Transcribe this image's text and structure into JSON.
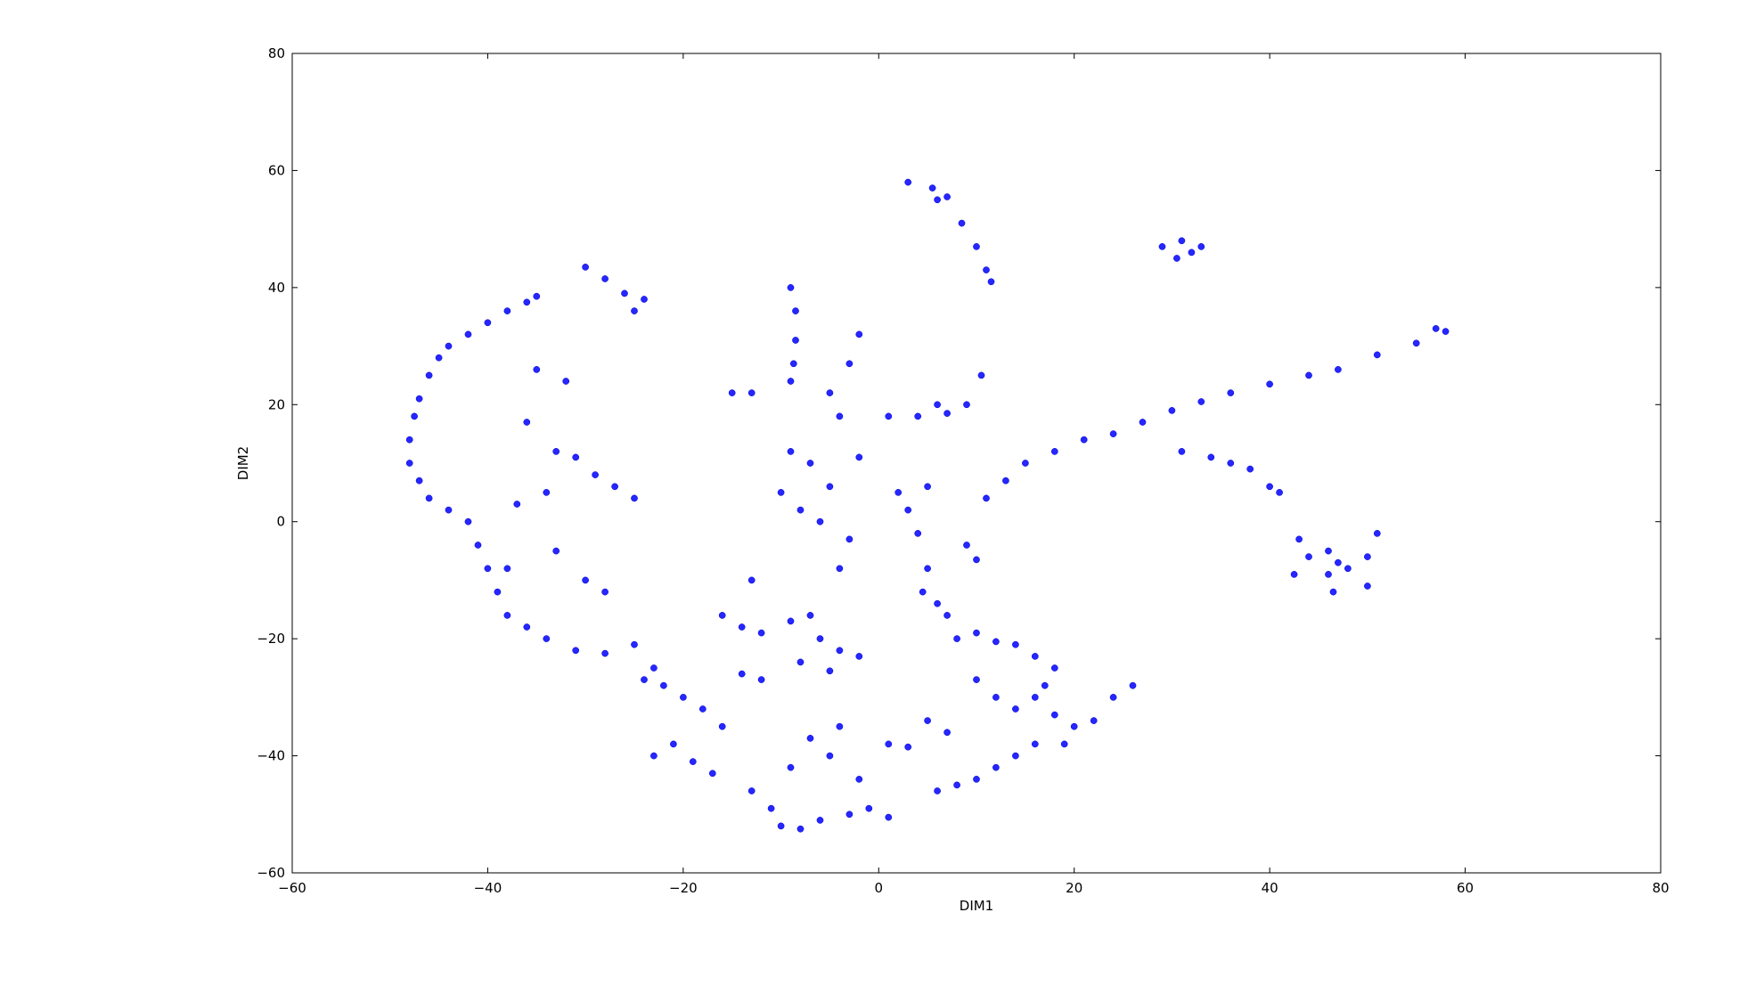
{
  "chart_data": {
    "type": "scatter",
    "title": "",
    "xlabel": "DIM1",
    "ylabel": "DIM2",
    "xlim": [
      -60,
      80
    ],
    "ylim": [
      -60,
      80
    ],
    "xticks": [
      -60,
      -40,
      -20,
      0,
      20,
      40,
      60,
      80
    ],
    "yticks": [
      -60,
      -40,
      -20,
      0,
      20,
      40,
      60,
      80
    ],
    "xtick_labels": [
      "−60",
      "−40",
      "−20",
      "0",
      "20",
      "40",
      "60",
      "80"
    ],
    "ytick_labels": [
      "−60",
      "−40",
      "−20",
      "0",
      "20",
      "40",
      "60",
      "80"
    ],
    "grid": false,
    "legend": false,
    "marker_color": "#0000ff",
    "series": [
      {
        "points": [
          [
            -48.0,
            14.0
          ],
          [
            -47.5,
            18.0
          ],
          [
            -47.0,
            21.0
          ],
          [
            -46.0,
            25.0
          ],
          [
            -45.0,
            28.0
          ],
          [
            -44.0,
            30.0
          ],
          [
            -42.0,
            32.0
          ],
          [
            -40.0,
            34.0
          ],
          [
            -38.0,
            36.0
          ],
          [
            -36.0,
            37.5
          ],
          [
            -35.0,
            38.5
          ],
          [
            -48.0,
            10.0
          ],
          [
            -47.0,
            7.0
          ],
          [
            -46.0,
            4.0
          ],
          [
            -44.0,
            2.0
          ],
          [
            -42.0,
            0.0
          ],
          [
            -41.0,
            -4.0
          ],
          [
            -40.0,
            -8.0
          ],
          [
            -39.0,
            -12.0
          ],
          [
            -38.0,
            -16.0
          ],
          [
            -36.0,
            -18.0
          ],
          [
            -34.0,
            -20.0
          ],
          [
            -31.0,
            -22.0
          ],
          [
            -28.0,
            -22.5
          ],
          [
            -35.0,
            26.0
          ],
          [
            -32.0,
            24.0
          ],
          [
            -36.0,
            17.0
          ],
          [
            -33.0,
            12.0
          ],
          [
            -31.0,
            11.0
          ],
          [
            -29.0,
            8.0
          ],
          [
            -27.0,
            6.0
          ],
          [
            -25.0,
            4.0
          ],
          [
            -34.0,
            5.0
          ],
          [
            -37.0,
            3.0
          ],
          [
            -33.0,
            -5.0
          ],
          [
            -30.0,
            -10.0
          ],
          [
            -28.0,
            -12.0
          ],
          [
            -38.0,
            -8.0
          ],
          [
            -30.0,
            43.5
          ],
          [
            -28.0,
            41.5
          ],
          [
            -26.0,
            39.0
          ],
          [
            -25.0,
            36.0
          ],
          [
            -24.0,
            38.0
          ],
          [
            -15.0,
            22.0
          ],
          [
            -13.0,
            22.0
          ],
          [
            -9.0,
            40.0
          ],
          [
            -8.5,
            36.0
          ],
          [
            -8.5,
            31.0
          ],
          [
            -8.7,
            27.0
          ],
          [
            -9.0,
            24.0
          ],
          [
            -5.0,
            22.0
          ],
          [
            -4.0,
            18.0
          ],
          [
            -2.0,
            32.0
          ],
          [
            -3.0,
            27.0
          ],
          [
            -9.0,
            12.0
          ],
          [
            -7.0,
            10.0
          ],
          [
            -5.0,
            6.0
          ],
          [
            -8.0,
            2.0
          ],
          [
            -6.0,
            0.0
          ],
          [
            -10.0,
            5.0
          ],
          [
            -2.0,
            11.0
          ],
          [
            1.0,
            18.0
          ],
          [
            4.0,
            18.0
          ],
          [
            7.0,
            18.5
          ],
          [
            9.0,
            20.0
          ],
          [
            10.5,
            25.0
          ],
          [
            6.0,
            20.0
          ],
          [
            3.0,
            58.0
          ],
          [
            5.5,
            57.0
          ],
          [
            6.0,
            55.0
          ],
          [
            7.0,
            55.5
          ],
          [
            8.5,
            51.0
          ],
          [
            10.0,
            47.0
          ],
          [
            11.0,
            43.0
          ],
          [
            11.5,
            41.0
          ],
          [
            29.0,
            47.0
          ],
          [
            31.0,
            48.0
          ],
          [
            32.0,
            46.0
          ],
          [
            33.0,
            47.0
          ],
          [
            30.5,
            45.0
          ],
          [
            11.0,
            4.0
          ],
          [
            13.0,
            7.0
          ],
          [
            15.0,
            10.0
          ],
          [
            18.0,
            12.0
          ],
          [
            21.0,
            14.0
          ],
          [
            24.0,
            15.0
          ],
          [
            27.0,
            17.0
          ],
          [
            30.0,
            19.0
          ],
          [
            33.0,
            20.5
          ],
          [
            36.0,
            22.0
          ],
          [
            40.0,
            23.5
          ],
          [
            44.0,
            25.0
          ],
          [
            47.0,
            26.0
          ],
          [
            51.0,
            28.5
          ],
          [
            55.0,
            30.5
          ],
          [
            57.0,
            33.0
          ],
          [
            58.0,
            32.5
          ],
          [
            31.0,
            12.0
          ],
          [
            34.0,
            11.0
          ],
          [
            36.0,
            10.0
          ],
          [
            38.0,
            9.0
          ],
          [
            40.0,
            6.0
          ],
          [
            41.0,
            5.0
          ],
          [
            44.0,
            -6.0
          ],
          [
            46.0,
            -5.0
          ],
          [
            47.0,
            -7.0
          ],
          [
            48.0,
            -8.0
          ],
          [
            46.0,
            -9.0
          ],
          [
            50.0,
            -6.0
          ],
          [
            51.0,
            -2.0
          ],
          [
            50.0,
            -11.0
          ],
          [
            46.5,
            -12.0
          ],
          [
            43.0,
            -3.0
          ],
          [
            42.5,
            -9.0
          ],
          [
            5.0,
            6.0
          ],
          [
            3.0,
            2.0
          ],
          [
            4.0,
            -2.0
          ],
          [
            5.0,
            -8.0
          ],
          [
            4.5,
            -12.0
          ],
          [
            6.0,
            -14.0
          ],
          [
            7.0,
            -16.0
          ],
          [
            9.0,
            -4.0
          ],
          [
            10.0,
            -6.5
          ],
          [
            2.0,
            5.0
          ],
          [
            -3.0,
            -3.0
          ],
          [
            -4.0,
            -8.0
          ],
          [
            -13.0,
            -10.0
          ],
          [
            -16.0,
            -16.0
          ],
          [
            -14.0,
            -18.0
          ],
          [
            -12.0,
            -19.0
          ],
          [
            -9.0,
            -17.0
          ],
          [
            -7.0,
            -16.0
          ],
          [
            -6.0,
            -20.0
          ],
          [
            -4.0,
            -22.0
          ],
          [
            -2.0,
            -23.0
          ],
          [
            -5.0,
            -25.5
          ],
          [
            -8.0,
            -24.0
          ],
          [
            -12.0,
            -27.0
          ],
          [
            -14.0,
            -26.0
          ],
          [
            -25.0,
            -21.0
          ],
          [
            -23.0,
            -25.0
          ],
          [
            -22.0,
            -28.0
          ],
          [
            -20.0,
            -30.0
          ],
          [
            -18.0,
            -32.0
          ],
          [
            -16.0,
            -35.0
          ],
          [
            -24.0,
            -27.0
          ],
          [
            -21.0,
            -38.0
          ],
          [
            -19.0,
            -41.0
          ],
          [
            -17.0,
            -43.0
          ],
          [
            -23.0,
            -40.0
          ],
          [
            -13.0,
            -46.0
          ],
          [
            -11.0,
            -49.0
          ],
          [
            -10.0,
            -52.0
          ],
          [
            -8.0,
            -52.5
          ],
          [
            -6.0,
            -51.0
          ],
          [
            -3.0,
            -50.0
          ],
          [
            -1.0,
            -49.0
          ],
          [
            1.0,
            -50.5
          ],
          [
            -9.0,
            -42.0
          ],
          [
            -7.0,
            -37.0
          ],
          [
            -4.0,
            -35.0
          ],
          [
            -5.0,
            -40.0
          ],
          [
            -2.0,
            -44.0
          ],
          [
            1.0,
            -38.0
          ],
          [
            3.0,
            -38.5
          ],
          [
            5.0,
            -34.0
          ],
          [
            7.0,
            -36.0
          ],
          [
            6.0,
            -46.0
          ],
          [
            8.0,
            -45.0
          ],
          [
            10.0,
            -44.0
          ],
          [
            12.0,
            -42.0
          ],
          [
            14.0,
            -40.0
          ],
          [
            16.0,
            -38.0
          ],
          [
            8.0,
            -20.0
          ],
          [
            10.0,
            -19.0
          ],
          [
            12.0,
            -20.5
          ],
          [
            14.0,
            -21.0
          ],
          [
            16.0,
            -23.0
          ],
          [
            18.0,
            -25.0
          ],
          [
            10.0,
            -27.0
          ],
          [
            12.0,
            -30.0
          ],
          [
            14.0,
            -32.0
          ],
          [
            16.0,
            -30.0
          ],
          [
            18.0,
            -33.0
          ],
          [
            20.0,
            -35.0
          ],
          [
            22.0,
            -34.0
          ],
          [
            24.0,
            -30.0
          ],
          [
            26.0,
            -28.0
          ],
          [
            19.0,
            -38.0
          ],
          [
            17.0,
            -28.0
          ]
        ]
      }
    ]
  }
}
